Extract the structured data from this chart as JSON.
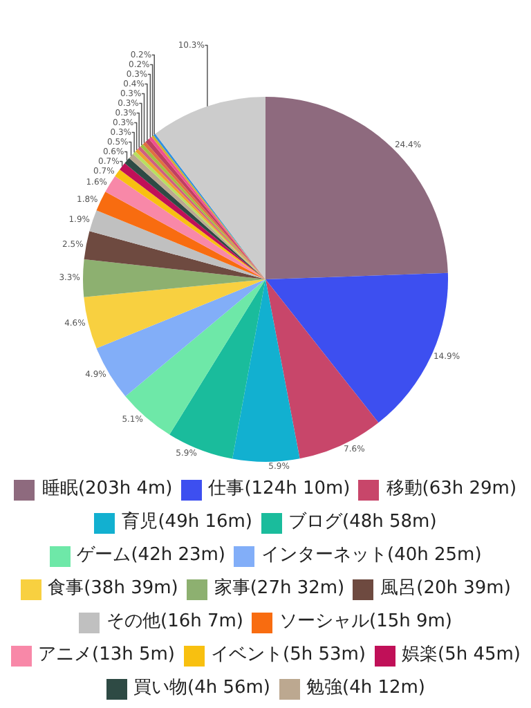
{
  "chart_data": {
    "type": "pie",
    "legend": "bottom",
    "value_labels": [
      "24.4%",
      "14.9%",
      "7.6%",
      "5.9%",
      "5.9%",
      "5.1%",
      "4.9%",
      "4.6%",
      "3.3%",
      "2.5%",
      "1.9%",
      "1.8%",
      "1.6%",
      "0.7%",
      "0.7%",
      "0.6%",
      "0.5%",
      "0.3%",
      "0.3%",
      "0.3%",
      "0.3%",
      "0.3%",
      "0.4%",
      "0.3%",
      "0.2%",
      "0.2%",
      "10.3%"
    ],
    "categories": [
      "睡眠(203h 4m)",
      "仕事(124h 10m)",
      "移動(63h 29m)",
      "育児(49h 16m)",
      "ブログ(48h 58m)",
      "ゲーム(42h 23m)",
      "インターネット(40h 25m)",
      "食事(38h 39m)",
      "家事(27h 32m)",
      "風呂(20h 39m)",
      "その他(16h 7m)",
      "ソーシャル(15h 9m)",
      "アニメ(13h 5m)",
      "イベント(5h 53m)",
      "娯楽(5h 45m)",
      "買い物(4h 56m)",
      "勉強(4h 12m)",
      null,
      null,
      null,
      null,
      null,
      null,
      null,
      null,
      null,
      null
    ],
    "values": [
      24.4,
      14.9,
      7.6,
      5.9,
      5.9,
      5.1,
      4.9,
      4.6,
      3.3,
      2.5,
      1.9,
      1.8,
      1.6,
      0.7,
      0.7,
      0.6,
      0.5,
      0.3,
      0.3,
      0.3,
      0.3,
      0.3,
      0.4,
      0.3,
      0.2,
      0.2,
      10.3
    ],
    "colors": [
      "#8e6a7e",
      "#3d4ff0",
      "#c8466a",
      "#12b0d0",
      "#1abc9c",
      "#6ee8a8",
      "#82aef8",
      "#f8d040",
      "#8db070",
      "#6e4a40",
      "#c0c0c0",
      "#f86c10",
      "#f888a8",
      "#f8c010",
      "#c01058",
      "#2e4a44",
      "#bca890",
      "#b8e060",
      "#f0a030",
      "#d06080",
      "#a0c040",
      "#e07040",
      "#c04060",
      "#f05090",
      "#d0b030",
      "#3090e0",
      "#cccccc"
    ]
  }
}
